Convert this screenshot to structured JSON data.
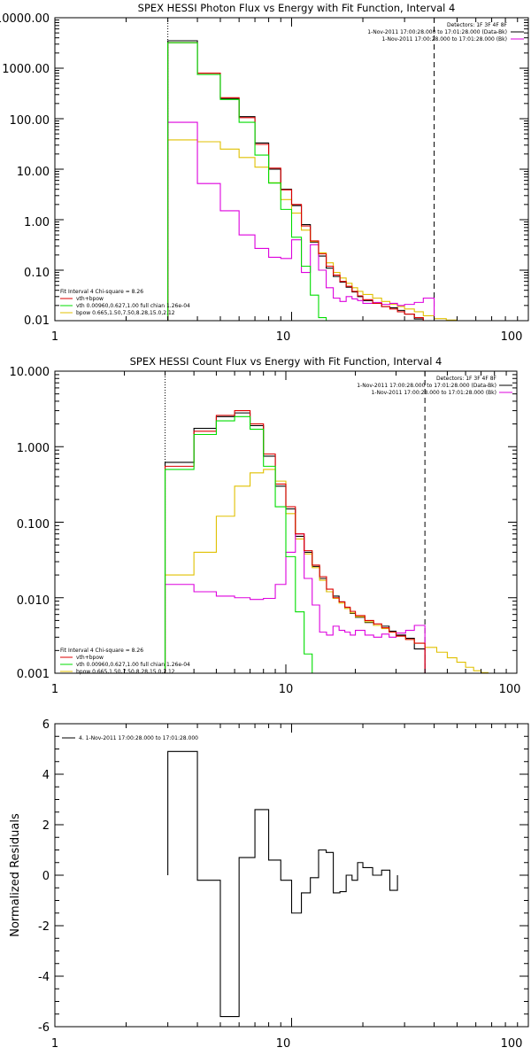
{
  "colors": {
    "background": "#ffffff",
    "axis": "#000000",
    "data": "#000000",
    "total_fit": "#dd0000",
    "vth": "#00dd00",
    "bpow": "#e0c000",
    "bk": "#dd00dd"
  },
  "chart_data": [
    {
      "type": "line",
      "title": "SPEX HESSI Photon Flux vs Energy with Fit Function, Interval 4",
      "xlabel": "",
      "ylabel": "",
      "x_scale": "log",
      "y_scale": "log",
      "xlim": [
        1,
        100
      ],
      "ylim": [
        0.01,
        10000
      ],
      "x_ticks": [
        "1",
        "10",
        "100"
      ],
      "y_ticks": [
        "0.01",
        "0.10",
        "1.00",
        "10.00",
        "100.00",
        "1000.00",
        "10000.00"
      ],
      "legend_top": {
        "placement": "top-right",
        "header": "Detectors: 1F 3F 4F 8F",
        "entries": [
          {
            "text": "1-Nov-2011 17:00:28.000 to 17:01:28.000 (Data-Bk)",
            "color": "#000000"
          },
          {
            "text": "1-Nov-2011 17:00:28.000 to 17:01:28.000 (Bk)",
            "color": "#dd00dd"
          }
        ]
      },
      "legend_bottom": {
        "placement": "bottom-left",
        "header": "Fit Interval 4   Chi-square = 8.26",
        "entries": [
          {
            "text": "vth+bpow",
            "color": "#dd0000"
          },
          {
            "text": "vth 0.00960,0.627,1.00  full chian 1.26e-04",
            "color": "#00dd00"
          },
          {
            "text": "bpow 0.665,1.50,7.50,8.28,15.0,2.12",
            "color": "#e0c000"
          }
        ]
      },
      "vlines": [
        {
          "x": 3,
          "style": "dotted"
        },
        {
          "x": 40,
          "style": "dashed"
        }
      ],
      "bin_edges": [
        3.0,
        4.0,
        5.0,
        6.0,
        7.0,
        8.0,
        9.0,
        10.0,
        11.0,
        12.0,
        13.0,
        14.0,
        15.0,
        16.0,
        17.0,
        18.0,
        19.0,
        20.0,
        22.0,
        24.0,
        26.0,
        28.0,
        30.0,
        33.0,
        36.0,
        40.0,
        45.0,
        50.0,
        55.0
      ],
      "series": [
        {
          "key": "data",
          "color": "#000000",
          "values": [
            3500,
            800,
            250,
            110,
            33,
            10,
            4.0,
            1.9,
            0.8,
            0.36,
            0.19,
            0.11,
            0.075,
            0.058,
            0.046,
            0.037,
            0.03,
            0.025,
            0.022,
            0.019,
            0.018,
            0.016,
            0.0135,
            0.0108
          ]
        },
        {
          "key": "total_fit",
          "color": "#dd0000",
          "values": [
            3200,
            800,
            260,
            105,
            31,
            10.5,
            3.9,
            2.0,
            0.75,
            0.38,
            0.21,
            0.12,
            0.08,
            0.06,
            0.048,
            0.038,
            0.031,
            0.026,
            0.022,
            0.019,
            0.017,
            0.015,
            0.0135,
            0.0115
          ]
        },
        {
          "key": "vth",
          "color": "#00dd00",
          "values": [
            3200,
            750,
            240,
            85,
            19,
            5.3,
            1.6,
            0.45,
            0.12,
            0.032,
            0.0115
          ]
        },
        {
          "key": "bpow",
          "color": "#e0c000",
          "values": [
            38,
            35,
            25,
            17,
            11,
            5.4,
            2.5,
            1.35,
            0.62,
            0.37,
            0.22,
            0.14,
            0.09,
            0.07,
            0.055,
            0.045,
            0.038,
            0.033,
            0.028,
            0.024,
            0.021,
            0.019,
            0.017,
            0.015,
            0.0125,
            0.011,
            0.0103
          ]
        },
        {
          "key": "bk",
          "color": "#dd00dd",
          "values": [
            85,
            5.2,
            1.5,
            0.5,
            0.27,
            0.18,
            0.17,
            0.4,
            0.09,
            0.32,
            0.1,
            0.045,
            0.028,
            0.024,
            0.03,
            0.027,
            0.025,
            0.022,
            0.023,
            0.021,
            0.022,
            0.02,
            0.021,
            0.023,
            0.028
          ]
        }
      ]
    },
    {
      "type": "line",
      "title": "SPEX HESSI Count Flux vs Energy with Fit Function, Interval 4",
      "xlabel": "",
      "ylabel": "",
      "x_scale": "log",
      "y_scale": "log",
      "xlim": [
        1,
        100
      ],
      "ylim": [
        0.001,
        10
      ],
      "x_ticks": [
        "1",
        "10",
        "100"
      ],
      "y_ticks": [
        "0.001",
        "0.010",
        "0.100",
        "1.000",
        "10.000"
      ],
      "legend_top": {
        "placement": "top-right",
        "header": "Detectors: 1F 3F 4F 8F",
        "entries": [
          {
            "text": "1-Nov-2011 17:00:28.000 to 17:01:28.000 (Data-Bk)",
            "color": "#000000"
          },
          {
            "text": "1-Nov-2011 17:00:28.000 to 17:01:28.000 (Bk)",
            "color": "#dd00dd"
          }
        ]
      },
      "legend_bottom": {
        "placement": "bottom-left",
        "header": "Fit Interval 4   Chi-square = 8.26",
        "entries": [
          {
            "text": "vth+bpow",
            "color": "#dd0000"
          },
          {
            "text": "vth 0.00960,0.627,1.00  full chian 1.26e-04",
            "color": "#00dd00"
          },
          {
            "text": "bpow 0.665,1.50,7.50,8.28,15.0,2.12",
            "color": "#e0c000"
          }
        ]
      },
      "vlines": [
        {
          "x": 3,
          "style": "dotted"
        },
        {
          "x": 40,
          "style": "dashed"
        }
      ],
      "bin_edges": [
        3.0,
        4.0,
        5.0,
        6.0,
        7.0,
        8.0,
        9.0,
        10.0,
        11.0,
        12.0,
        13.0,
        14.0,
        15.0,
        16.0,
        17.0,
        18.0,
        19.0,
        20.0,
        22.0,
        24.0,
        26.0,
        28.0,
        30.0,
        33.0,
        36.0,
        40.0,
        45.0,
        50.0,
        55.0,
        60.0,
        65.0,
        70.0,
        75.0
      ],
      "series": [
        {
          "key": "data",
          "color": "#000000",
          "values": [
            0.62,
            1.75,
            2.5,
            2.8,
            1.9,
            0.75,
            0.3,
            0.15,
            0.065,
            0.04,
            0.026,
            0.018,
            0.012,
            0.0105,
            0.0088,
            0.0072,
            0.0062,
            0.0055,
            0.0047,
            0.0043,
            0.0042,
            0.0036,
            0.0032,
            0.0029,
            0.0021
          ]
        },
        {
          "key": "total_fit",
          "color": "#dd0000",
          "values": [
            0.55,
            1.6,
            2.6,
            3.0,
            2.0,
            0.8,
            0.32,
            0.16,
            0.07,
            0.042,
            0.027,
            0.019,
            0.013,
            0.01,
            0.0088,
            0.0075,
            0.0066,
            0.0058,
            0.005,
            0.0045,
            0.004,
            0.0035,
            0.0031,
            0.0028,
            0.0025
          ]
        },
        {
          "key": "vth",
          "color": "#00dd00",
          "values": [
            0.5,
            1.45,
            2.2,
            2.5,
            1.7,
            0.55,
            0.16,
            0.035,
            0.0065,
            0.0018
          ]
        },
        {
          "key": "bpow",
          "color": "#e0c000",
          "values": [
            0.02,
            0.04,
            0.12,
            0.3,
            0.45,
            0.5,
            0.35,
            0.13,
            0.06,
            0.038,
            0.025,
            0.017,
            0.012,
            0.0098,
            0.0085,
            0.0072,
            0.0063,
            0.0056,
            0.0048,
            0.0043,
            0.0039,
            0.0035,
            0.0031,
            0.0028,
            0.0025,
            0.0022,
            0.0019,
            0.0016,
            0.0014,
            0.0012,
            0.00108,
            0.00102
          ]
        },
        {
          "key": "bk",
          "color": "#dd00dd",
          "values": [
            0.015,
            0.012,
            0.0105,
            0.01,
            0.0095,
            0.0098,
            0.015,
            0.04,
            0.07,
            0.018,
            0.008,
            0.0035,
            0.0032,
            0.0042,
            0.0037,
            0.0035,
            0.0032,
            0.0037,
            0.0032,
            0.003,
            0.0033,
            0.003,
            0.0034,
            0.0037,
            0.0043
          ]
        }
      ]
    },
    {
      "type": "line",
      "title": "",
      "xlabel": "",
      "ylabel": "Normalized Residuals",
      "x_scale": "log",
      "y_scale": "linear",
      "xlim": [
        1,
        100
      ],
      "ylim": [
        -6,
        6
      ],
      "x_ticks": [
        "1",
        "10",
        "100"
      ],
      "y_ticks": [
        "-6",
        "-4",
        "-2",
        "0",
        "2",
        "4",
        "6"
      ],
      "legend": {
        "placement": "top-left",
        "entries": [
          {
            "text": "4. 1-Nov-2011 17:00:28.000 to 17:01:28.000",
            "color": "#000000"
          }
        ]
      },
      "bin_edges": [
        3.0,
        4.0,
        5.0,
        6.0,
        7.0,
        8.0,
        9.0,
        10.0,
        11.0,
        12.0,
        13.0,
        14.0,
        15.0,
        16.0,
        17.0,
        18.0,
        19.0,
        20.0,
        22.0,
        24.0,
        26.0,
        28.0,
        30.0,
        33.0,
        36.0,
        40.0
      ],
      "series": [
        {
          "key": "residuals",
          "color": "#000000",
          "values": [
            4.9,
            -0.2,
            -5.6,
            0.7,
            2.6,
            0.6,
            -0.2,
            -1.5,
            -0.7,
            -0.1,
            1.0,
            0.9,
            -0.7,
            -0.65,
            0.0,
            -0.2,
            0.5,
            0.3,
            0.0,
            0.2,
            -0.6
          ]
        }
      ]
    }
  ]
}
